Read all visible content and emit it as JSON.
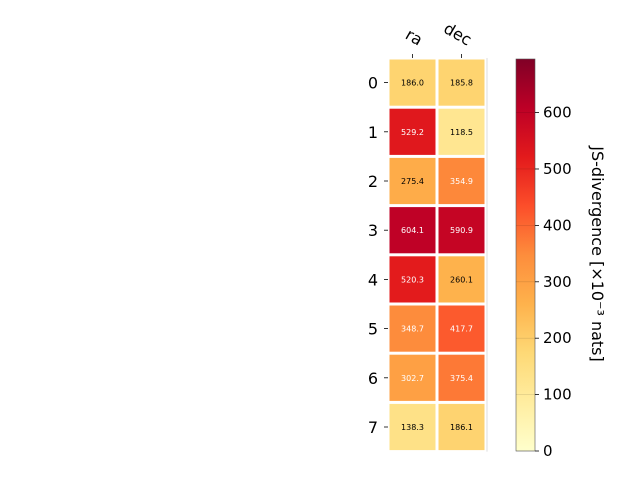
{
  "chart_data": {
    "type": "heatmap",
    "columns": [
      "ra",
      "dec"
    ],
    "rows": [
      "0",
      "1",
      "2",
      "3",
      "4",
      "5",
      "6",
      "7"
    ],
    "values": [
      [
        186.0,
        185.8
      ],
      [
        529.2,
        118.5
      ],
      [
        275.4,
        354.9
      ],
      [
        604.1,
        590.9
      ],
      [
        520.3,
        260.1
      ],
      [
        348.7,
        417.7
      ],
      [
        302.7,
        375.4
      ],
      [
        138.3,
        186.1
      ]
    ],
    "value_labels": [
      [
        "186.0",
        "185.8"
      ],
      [
        "529.2",
        "118.5"
      ],
      [
        "275.4",
        "354.9"
      ],
      [
        "604.1",
        "590.9"
      ],
      [
        "520.3",
        "260.1"
      ],
      [
        "348.7",
        "417.7"
      ],
      [
        "302.7",
        "375.4"
      ],
      [
        "138.3",
        "186.1"
      ]
    ],
    "colorbar": {
      "label": "JS-divergence [×10⁻³ nats]",
      "range": [
        0,
        695
      ],
      "ticks": [
        0,
        100,
        200,
        300,
        400,
        500,
        600
      ],
      "colormap": "YlOrRd"
    }
  }
}
